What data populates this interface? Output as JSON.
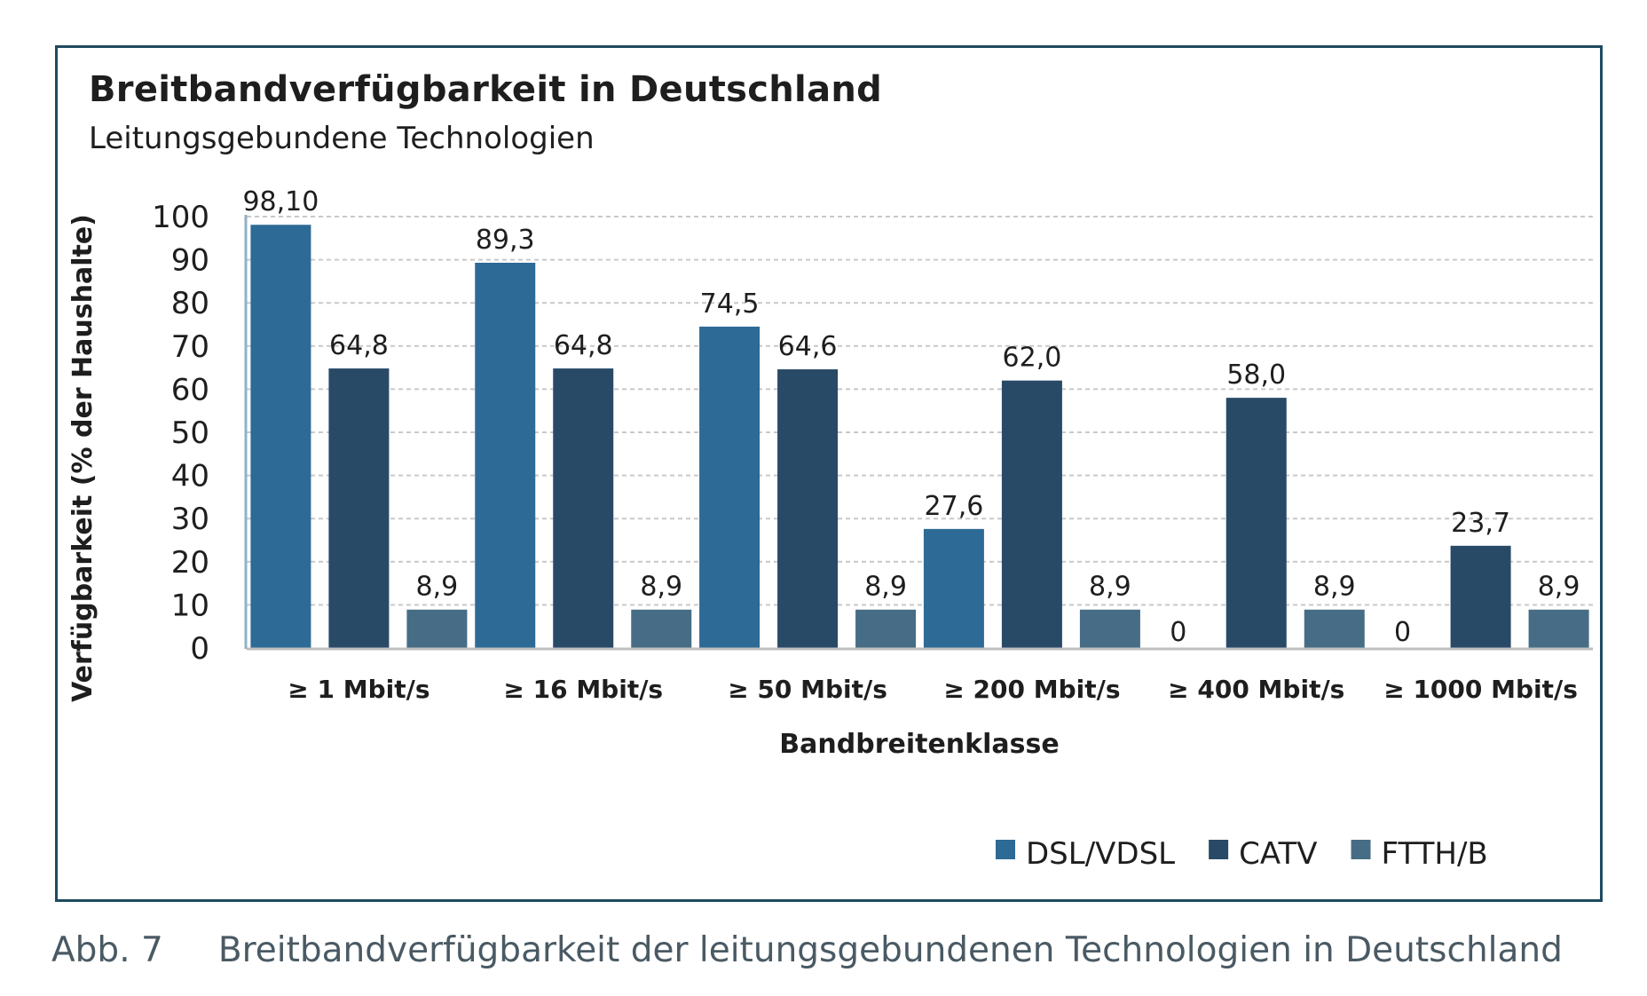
{
  "figure": {
    "caption_number": "Abb. 7",
    "caption_text": "Breitbandverfügbarkeit der leitungsgebundenen Technologien in Deutschland"
  },
  "chart_data": {
    "type": "bar",
    "title": "Breitbandverfügbarkeit in Deutschland",
    "subtitle": "Leitungsgebundene Technologien",
    "xlabel": "Bandbreitenklasse",
    "ylabel": "Verfügbarkeit (% der Haushalte)",
    "ylim": [
      0,
      100
    ],
    "yticks": [
      0,
      10,
      20,
      30,
      40,
      50,
      60,
      70,
      80,
      90,
      100
    ],
    "grid": true,
    "legend_position": "bottom-right",
    "categories": [
      "≥ 1 Mbit/s",
      "≥ 16 Mbit/s",
      "≥ 50 Mbit/s",
      "≥ 200 Mbit/s",
      "≥ 400 Mbit/s",
      "≥ 1000 Mbit/s"
    ],
    "series": [
      {
        "name": "DSL/VDSL",
        "color": "#2e6a96",
        "values": [
          98.1,
          89.3,
          74.5,
          27.6,
          0,
          0
        ],
        "labels": [
          "98,10",
          "89,3",
          "74,5",
          "27,6",
          "0",
          "0"
        ]
      },
      {
        "name": "CATV",
        "color": "#294a67",
        "values": [
          64.8,
          64.8,
          64.6,
          62.0,
          58.0,
          23.7
        ],
        "labels": [
          "64,8",
          "64,8",
          "64,6",
          "62,0",
          "58,0",
          "23,7"
        ]
      },
      {
        "name": "FTTH/B",
        "color": "#466d85",
        "values": [
          8.9,
          8.9,
          8.9,
          8.9,
          8.9,
          8.9
        ],
        "labels": [
          "8,9",
          "8,9",
          "8,9",
          "8,9",
          "8,9",
          "8,9"
        ]
      }
    ]
  }
}
